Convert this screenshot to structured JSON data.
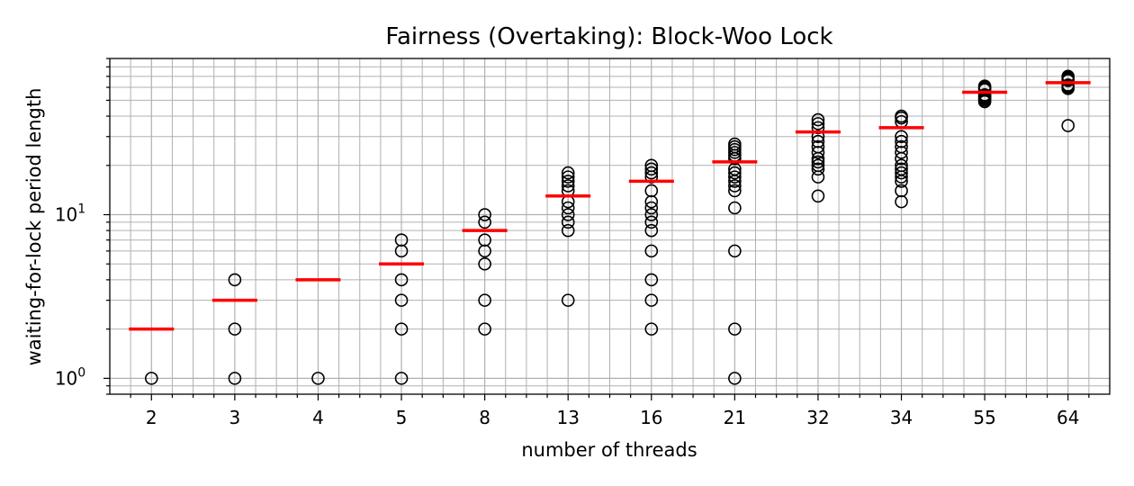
{
  "chart_data": {
    "type": "box",
    "title": "Fairness (Overtaking): Block-Woo Lock",
    "xlabel": "number of threads",
    "ylabel": "waiting-for-lock period length",
    "yscale": "log",
    "ylim": [
      0.8,
      90
    ],
    "ytick_base": "10",
    "ytick_exponents": [
      "0",
      "1"
    ],
    "grid": true,
    "grid_minor": true,
    "median_color": "#ff0000",
    "flier_color": "#000000",
    "categories": [
      "2",
      "3",
      "4",
      "5",
      "8",
      "13",
      "16",
      "21",
      "32",
      "34",
      "55",
      "64"
    ],
    "medians": [
      2,
      3,
      4,
      5,
      8,
      13,
      16,
      21,
      32,
      34,
      56,
      64
    ],
    "outliers": [
      [
        1
      ],
      [
        1,
        2,
        4
      ],
      [
        1
      ],
      [
        1,
        2,
        3,
        4,
        6,
        7
      ],
      [
        2,
        3,
        5,
        6,
        7,
        9,
        10
      ],
      [
        3,
        8,
        9,
        10,
        11,
        12,
        14,
        15,
        16,
        17,
        18
      ],
      [
        2,
        3,
        4,
        6,
        8,
        9,
        10,
        11,
        12,
        14,
        17,
        18,
        19,
        20
      ],
      [
        1,
        2,
        6,
        11,
        14,
        15,
        16,
        17,
        18,
        19,
        22,
        23,
        24,
        25,
        26,
        27
      ],
      [
        13,
        17,
        19,
        20,
        21,
        22,
        24,
        26,
        28,
        30,
        34,
        36,
        38
      ],
      [
        12,
        14,
        16,
        17,
        18,
        19,
        20,
        22,
        24,
        26,
        28,
        30,
        37,
        39,
        40
      ],
      [
        49,
        50,
        51,
        52,
        53,
        54,
        58,
        59,
        60,
        61
      ],
      [
        35,
        59,
        60,
        61,
        62,
        66,
        67,
        68,
        69,
        70
      ]
    ]
  }
}
